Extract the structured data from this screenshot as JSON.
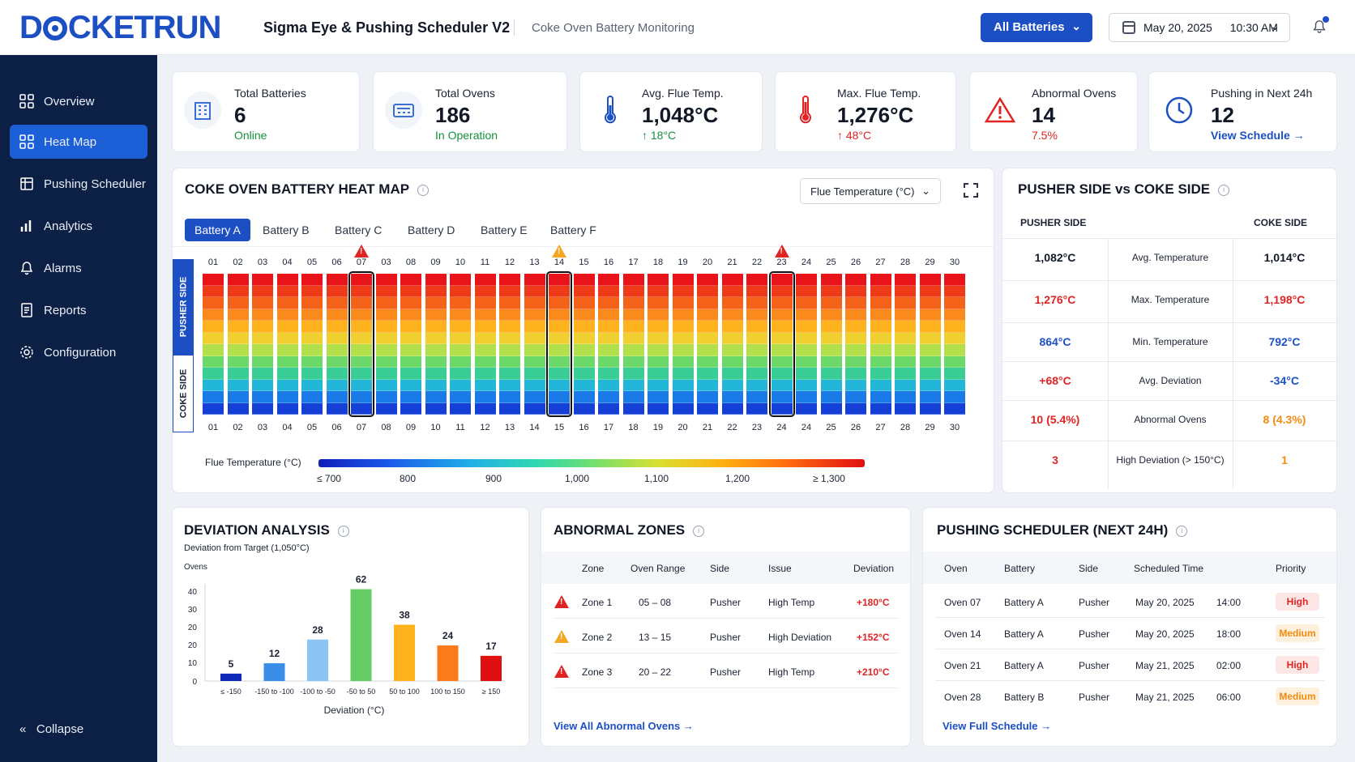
{
  "header": {
    "logo": "DOCKETRUN",
    "logo_parts": [
      "D",
      "CKETRUN"
    ],
    "title": "Sigma Eye & Pushing Scheduler V2",
    "subtitle": "Coke Oven Battery Monitoring",
    "battery_select": "All Batteries",
    "date": "May 20, 2025",
    "time": "10:30 AM"
  },
  "sidebar": {
    "items": [
      {
        "label": "Overview",
        "icon": "grid-icon"
      },
      {
        "label": "Heat Map",
        "icon": "grid-icon",
        "active": true
      },
      {
        "label": "Pushing Scheduler",
        "icon": "calendar-icon"
      },
      {
        "label": "Analytics",
        "icon": "bar-chart-icon"
      },
      {
        "label": "Alarms",
        "icon": "bell-icon"
      },
      {
        "label": "Reports",
        "icon": "report-icon"
      },
      {
        "label": "Configuration",
        "icon": "gear-icon"
      }
    ],
    "collapse": "Collapse"
  },
  "kpis": [
    {
      "label": "Total Batteries",
      "value": "6",
      "sub": "Online",
      "sub_color": "green",
      "icon": "building-icon"
    },
    {
      "label": "Total Ovens",
      "value": "186",
      "sub": "In Operation",
      "sub_color": "green",
      "icon": "oven-icon"
    },
    {
      "label": "Avg. Flue Temp.",
      "value": "1,048°C",
      "sub": "↑ 18°C",
      "sub_color": "green",
      "icon": "thermometer-icon"
    },
    {
      "label": "Max. Flue Temp.",
      "value": "1,276°C",
      "sub": "↑ 48°C",
      "sub_color": "red",
      "icon": "thermometer-hot-icon"
    },
    {
      "label": "Abnormal Ovens",
      "value": "14",
      "sub": "7.5%",
      "sub_color": "red",
      "icon": "warning-icon"
    },
    {
      "label": "Pushing in Next 24h",
      "value": "12",
      "sub": "View Schedule →",
      "sub_color": "blue",
      "icon": "clock-icon"
    }
  ],
  "heatmap": {
    "title": "COKE OVEN BATTERY HEAT MAP",
    "metric_select": "Flue Temperature (°C)",
    "tabs": [
      "Battery A",
      "Battery B",
      "Battery C",
      "Battery D",
      "Battery E",
      "Battery F"
    ],
    "active_tab": 0,
    "top_labels": [
      "01",
      "02",
      "03",
      "04",
      "05",
      "06",
      "07",
      "03",
      "08",
      "09",
      "10",
      "11",
      "12",
      "13",
      "14",
      "15",
      "16",
      "17",
      "18",
      "19",
      "20",
      "21",
      "22",
      "23",
      "24",
      "25",
      "26",
      "27",
      "28",
      "29",
      "30"
    ],
    "bottom_labels": [
      "01",
      "02",
      "03",
      "04",
      "05",
      "06",
      "07",
      "08",
      "09",
      "10",
      "11",
      "12",
      "13",
      "14",
      "15",
      "16",
      "17",
      "18",
      "19",
      "20",
      "21",
      "22",
      "23",
      "24",
      "24",
      "25",
      "26",
      "27",
      "28",
      "29",
      "30"
    ],
    "pusher_side_label": "PUSHER SIDE",
    "coke_side_label": "COKE SIDE",
    "highlighted_columns": [
      6,
      14,
      23
    ],
    "warning_columns": [
      {
        "col": 6,
        "level": "red"
      },
      {
        "col": 14,
        "level": "orange"
      },
      {
        "col": 23,
        "level": "red"
      }
    ],
    "row_colors": [
      "#e8141a",
      "#ee3a18",
      "#f4621a",
      "#fa8a1c",
      "#fdb21e",
      "#f0d030",
      "#b2e04a",
      "#6cd86a",
      "#3acd96",
      "#22b6d8",
      "#1a7ae8",
      "#1540d8"
    ],
    "legend_label": "Flue Temperature (°C)",
    "legend_ticks": [
      "≤ 700",
      "800",
      "900",
      "1,000",
      "1,100",
      "1,200",
      "≥ 1,300"
    ]
  },
  "comparison": {
    "title": "PUSHER SIDE vs COKE SIDE",
    "left_header": "PUSHER SIDE",
    "right_header": "COKE SIDE",
    "rows": [
      {
        "pusher": "1,082°C",
        "metric": "Avg. Temperature",
        "coke": "1,014°C",
        "pc": "dark",
        "cc": "dark"
      },
      {
        "pusher": "1,276°C",
        "metric": "Max. Temperature",
        "coke": "1,198°C",
        "pc": "red",
        "cc": "red"
      },
      {
        "pusher": "864°C",
        "metric": "Min. Temperature",
        "coke": "792°C",
        "pc": "blue",
        "cc": "blue"
      },
      {
        "pusher": "+68°C",
        "metric": "Avg. Deviation",
        "coke": "-34°C",
        "pc": "red",
        "cc": "blue"
      },
      {
        "pusher": "10 (5.4%)",
        "metric": "Abnormal Ovens",
        "coke": "8 (4.3%)",
        "pc": "red",
        "cc": "orange"
      },
      {
        "pusher": "3",
        "metric": "High Deviation (> 150°C)",
        "coke": "1",
        "pc": "red",
        "cc": "orange"
      }
    ]
  },
  "deviation": {
    "title": "DEVIATION ANALYSIS",
    "subtitle": "Deviation from Target (1,050°C)"
  },
  "chart_data": {
    "type": "bar",
    "ylabel": "Ovens",
    "xlabel": "Deviation (°C)",
    "categories": [
      "≤ -150",
      "-150 to -100",
      "-100 to -50",
      "-50 to 50",
      "50 to 100",
      "100 to 150",
      "≥ 150"
    ],
    "values": [
      5,
      12,
      28,
      62,
      38,
      24,
      17
    ],
    "colors": [
      "#1029b8",
      "#3a8ee8",
      "#8cc4f4",
      "#66cc66",
      "#fdb21e",
      "#fa7a1c",
      "#e01010"
    ],
    "y_ticks": [
      "0",
      "10",
      "20",
      "20",
      "30",
      "40"
    ],
    "ylim": [
      0,
      60
    ]
  },
  "abnormal": {
    "title": "ABNORMAL ZONES",
    "headers": [
      "Zone",
      "Oven Range",
      "Side",
      "Issue",
      "Deviation"
    ],
    "rows": [
      {
        "zone": "Zone 1",
        "range": "05 – 08",
        "side": "Pusher",
        "issue": "High Temp",
        "dev": "+180°C",
        "level": "red"
      },
      {
        "zone": "Zone 2",
        "range": "13 – 15",
        "side": "Pusher",
        "issue": "High Deviation",
        "dev": "+152°C",
        "level": "orange"
      },
      {
        "zone": "Zone 3",
        "range": "20 – 22",
        "side": "Pusher",
        "issue": "High Temp",
        "dev": "+210°C",
        "level": "red"
      }
    ],
    "link": "View All Abnormal Ovens →"
  },
  "scheduler": {
    "title": "PUSHING SCHEDULER (NEXT 24H)",
    "headers": [
      "Oven",
      "Battery",
      "Side",
      "Scheduled Time",
      "Priority"
    ],
    "rows": [
      {
        "oven": "Oven 07",
        "battery": "Battery A",
        "side": "Pusher",
        "date": "May 20, 2025",
        "time": "14:00",
        "priority": "High"
      },
      {
        "oven": "Oven 14",
        "battery": "Battery A",
        "side": "Pusher",
        "date": "May 20, 2025",
        "time": "18:00",
        "priority": "Medium"
      },
      {
        "oven": "Oven 21",
        "battery": "Battery A",
        "side": "Pusher",
        "date": "May 21, 2025",
        "time": "02:00",
        "priority": "High"
      },
      {
        "oven": "Oven 28",
        "battery": "Battery B",
        "side": "Pusher",
        "date": "May 21, 2025",
        "time": "06:00",
        "priority": "Medium"
      }
    ],
    "link": "View Full Schedule →"
  }
}
